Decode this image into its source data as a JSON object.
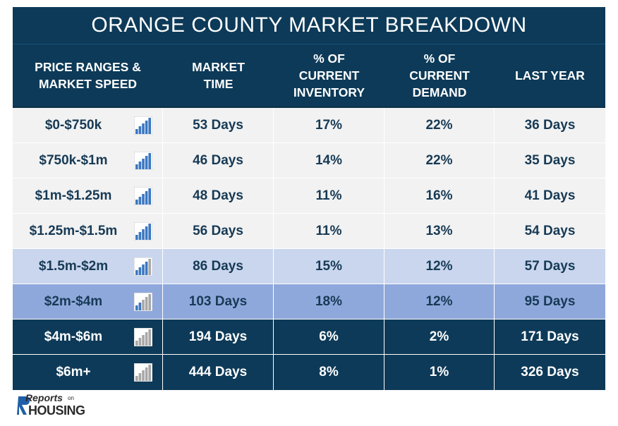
{
  "title": "ORANGE COUNTY MARKET BREAKDOWN",
  "headers": [
    [
      "PRICE RANGES &",
      "MARKET SPEED"
    ],
    [
      "MARKET",
      "TIME"
    ],
    [
      "% OF",
      "CURRENT",
      "INVENTORY"
    ],
    [
      "% OF",
      "CURRENT",
      "DEMAND"
    ],
    [
      "LAST YEAR"
    ]
  ],
  "rows": [
    {
      "range": "$0-$750k",
      "market_time": "53 Days",
      "inventory": "17%",
      "demand": "22%",
      "last_year": "36 Days",
      "speed_icon": "bar-chart-fast-icon"
    },
    {
      "range": "$750k-$1m",
      "market_time": "46 Days",
      "inventory": "14%",
      "demand": "22%",
      "last_year": "35 Days",
      "speed_icon": "bar-chart-fast-icon"
    },
    {
      "range": "$1m-$1.25m",
      "market_time": "48 Days",
      "inventory": "11%",
      "demand": "16%",
      "last_year": "41 Days",
      "speed_icon": "bar-chart-fast-icon"
    },
    {
      "range": "$1.25m-$1.5m",
      "market_time": "56 Days",
      "inventory": "11%",
      "demand": "13%",
      "last_year": "54 Days",
      "speed_icon": "bar-chart-fast-icon"
    },
    {
      "range": "$1.5m-$2m",
      "market_time": "86 Days",
      "inventory": "15%",
      "demand": "12%",
      "last_year": "57 Days",
      "speed_icon": "bar-chart-medium-icon"
    },
    {
      "range": "$2m-$4m",
      "market_time": "103 Days",
      "inventory": "18%",
      "demand": "12%",
      "last_year": "95 Days",
      "speed_icon": "bar-chart-slow-icon"
    },
    {
      "range": "$4m-$6m",
      "market_time": "194 Days",
      "inventory": "6%",
      "demand": "2%",
      "last_year": "171 Days",
      "speed_icon": "bar-chart-slowest-icon"
    },
    {
      "range": "$6m+",
      "market_time": "444 Days",
      "inventory": "8%",
      "demand": "1%",
      "last_year": "326 Days",
      "speed_icon": "bar-chart-slowest-icon"
    }
  ],
  "logo": {
    "reports": "Reports",
    "on": "on",
    "housing": "HOUSING"
  },
  "colors": {
    "navy": "#0d3a58",
    "light_row": "#f2f2f2",
    "pale_row": "#c9d6ee",
    "mid_row": "#8fa8dc",
    "icon_blue": "#3b78c2",
    "icon_gray": "#a8a8a8"
  }
}
